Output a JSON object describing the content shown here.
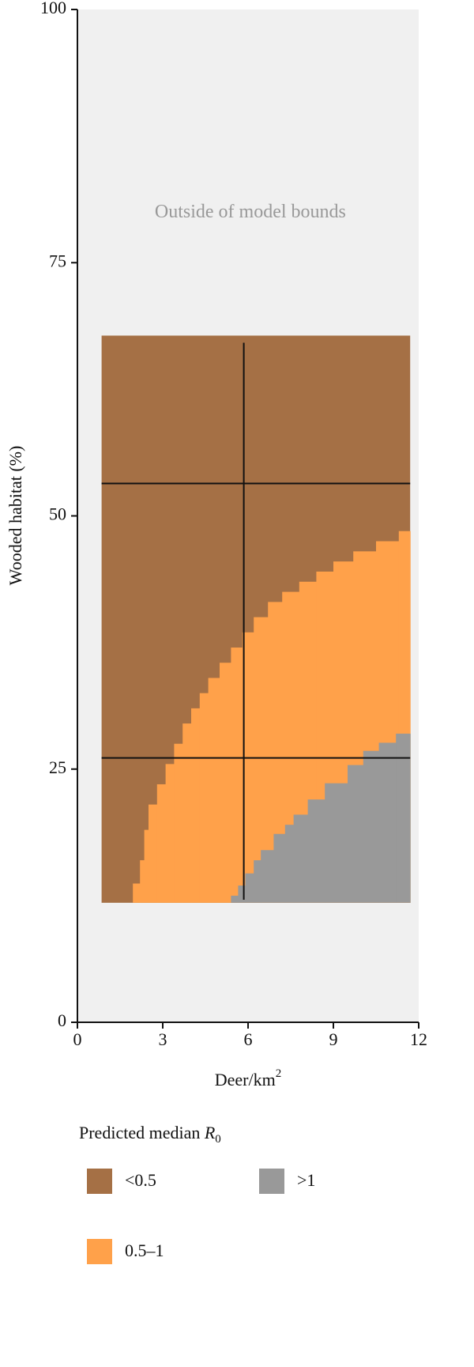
{
  "chart_data": {
    "type": "region",
    "xlabel": "Deer/km",
    "xlabel_superscript": "2",
    "ylabel": "Wooded habitat (%)",
    "xlim": [
      0,
      12
    ],
    "xticks": [
      0,
      3,
      6,
      9,
      12
    ],
    "ylim": [
      0,
      100
    ],
    "yticks": [
      0,
      25,
      50,
      75,
      100
    ],
    "background": "#f0f0f0",
    "annotation": {
      "text": "Outside of model bounds",
      "x": 6.08,
      "y": 79.9
    },
    "region_xlim": [
      0.85,
      11.7
    ],
    "region_ylim": [
      11.8,
      67.8
    ],
    "series": [
      {
        "name": "<0.5",
        "color": "#a57045"
      },
      {
        "name": "0.5–1",
        "color": "#ffa14a",
        "x": [
          1.95,
          2.2,
          2.35,
          2.5,
          2.8,
          3.1,
          3.4,
          3.7,
          4.0,
          4.3,
          4.6,
          5.0,
          5.4,
          5.8,
          6.2,
          6.7,
          7.2,
          7.8,
          8.4,
          9.0,
          9.7,
          10.5,
          11.3
        ],
        "values": [
          13.7,
          16,
          19,
          21.5,
          23.5,
          25.5,
          27.5,
          29.5,
          31,
          32.5,
          34,
          35.5,
          37,
          38.5,
          40,
          41.5,
          42.5,
          43.5,
          44.5,
          45.5,
          46.5,
          47.5,
          48.5
        ]
      },
      {
        "name": ">1",
        "color": "#999999",
        "x": [
          5.4,
          5.65,
          5.9,
          6.2,
          6.45,
          6.9,
          7.3,
          7.6,
          8.1,
          8.7,
          9.5,
          10.05,
          10.6,
          11.2
        ],
        "values": [
          12.5,
          13.5,
          14.7,
          16,
          17,
          18.6,
          19.5,
          20.5,
          22,
          23.6,
          25.4,
          26.8,
          27.6,
          28.5
        ]
      }
    ],
    "reference_lines": {
      "color": "#111111",
      "horizontal": [
        53.2,
        26.1
      ],
      "vertical": [
        5.85
      ],
      "vertical_ylim": [
        12.1,
        67.1
      ]
    },
    "legend": {
      "title": "Predicted median ",
      "title_symbol": "R",
      "title_subscript": "0"
    }
  }
}
